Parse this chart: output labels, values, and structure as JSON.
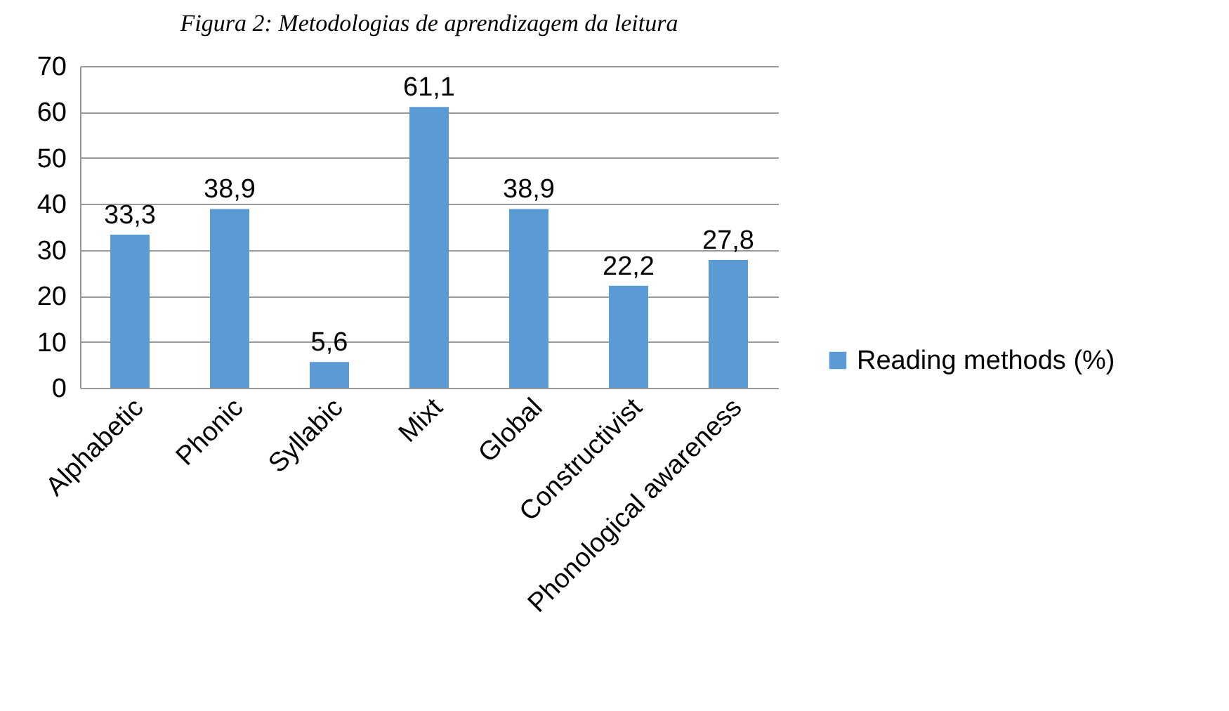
{
  "chart_data": {
    "type": "bar",
    "title": "Figura 2: Metodologias de aprendizagem da leitura",
    "categories": [
      "Alphabetic",
      "Phonic",
      "Syllabic",
      "Mixt",
      "Global",
      "Constructivist",
      "Phonological awareness"
    ],
    "series": [
      {
        "name": "Reading methods (%)",
        "color": "#5b9bd5",
        "values": [
          33.3,
          38.9,
          5.6,
          61.1,
          38.9,
          22.2,
          27.8
        ],
        "value_labels": [
          "33,3",
          "38,9",
          "5,6",
          "61,1",
          "38,9",
          "22,2",
          "27,8"
        ]
      }
    ],
    "ylim": [
      0,
      70
    ],
    "yticks": [
      0,
      10,
      20,
      30,
      40,
      50,
      60,
      70
    ],
    "grid": "y",
    "legend": "right"
  }
}
